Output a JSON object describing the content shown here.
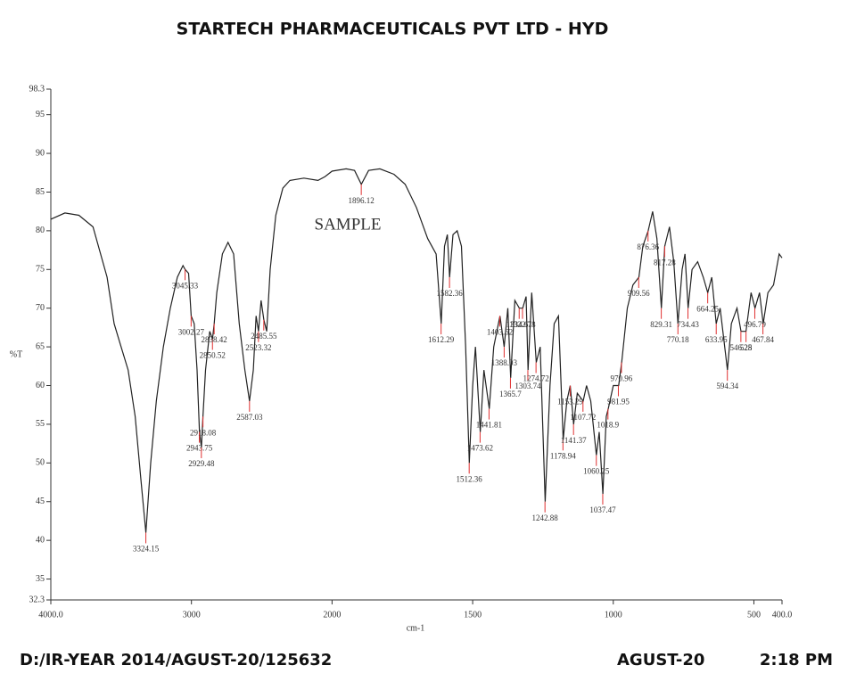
{
  "chart_data": {
    "type": "line",
    "title": "STARTECH PHARMACEUTICALS PVT LTD - HYD",
    "annotation": "SAMPLE",
    "x_label": "cm-1",
    "y_label": "%T",
    "footer_left": "D:/IR-YEAR 2014/AGUST-20/125632",
    "footer_date": "AGUST-20",
    "footer_time": "2:18 PM",
    "xlim": [
      4000,
      400
    ],
    "xscale": {
      "break": 2000,
      "factor": 2
    },
    "xticks": [
      {
        "value": 4000,
        "label": "4000.0"
      },
      3000,
      2000,
      1500,
      1000,
      500,
      {
        "value": 400,
        "label": "400.0"
      }
    ],
    "ylim": [
      32.3,
      98.3
    ],
    "yticks": [
      32.3,
      35,
      40,
      45,
      50,
      55,
      60,
      65,
      70,
      75,
      80,
      85,
      90,
      95,
      98.3
    ],
    "color": "#222222",
    "peak_color": "#e03030",
    "x": [
      4000,
      3900,
      3800,
      3700,
      3600,
      3550,
      3500,
      3450,
      3400,
      3360,
      3324,
      3290,
      3250,
      3200,
      3150,
      3100,
      3060,
      3045,
      3020,
      3002,
      2980,
      2960,
      2943,
      2929,
      2918,
      2900,
      2870,
      2850,
      2838,
      2820,
      2780,
      2740,
      2700,
      2660,
      2620,
      2587,
      2560,
      2540,
      2523,
      2505,
      2485,
      2465,
      2440,
      2400,
      2350,
      2300,
      2200,
      2100,
      2050,
      2000,
      1950,
      1920,
      1896,
      1870,
      1830,
      1780,
      1740,
      1700,
      1660,
      1630,
      1612,
      1600,
      1590,
      1582,
      1570,
      1555,
      1540,
      1525,
      1512,
      1500,
      1490,
      1473,
      1460,
      1441,
      1425,
      1403,
      1388,
      1375,
      1365,
      1350,
      1334,
      1322,
      1310,
      1303,
      1290,
      1274,
      1260,
      1242,
      1225,
      1210,
      1195,
      1178,
      1165,
      1153,
      1141,
      1128,
      1107,
      1095,
      1080,
      1060,
      1050,
      1037,
      1025,
      1018,
      1000,
      981,
      970,
      950,
      930,
      909,
      895,
      876,
      860,
      845,
      829,
      817,
      800,
      785,
      770,
      755,
      745,
      734,
      720,
      700,
      680,
      664,
      650,
      634,
      620,
      594,
      580,
      560,
      546,
      528,
      510,
      496,
      480,
      467,
      450,
      430,
      410,
      400
    ],
    "values": [
      81.5,
      82.3,
      82.0,
      80.5,
      74,
      68,
      65,
      62,
      56,
      48,
      41,
      50,
      58,
      65,
      70,
      74,
      75.5,
      75,
      74.5,
      69,
      68,
      62,
      54,
      52,
      56,
      62,
      67,
      66,
      68,
      72,
      77,
      78.5,
      77,
      68,
      62,
      58,
      62,
      69,
      67,
      71,
      68.5,
      67,
      75,
      82,
      85.5,
      86.5,
      86.8,
      86.5,
      87,
      87.7,
      88,
      87.8,
      86,
      87.8,
      88,
      87.3,
      86,
      83,
      79,
      77,
      68,
      78,
      79.5,
      74,
      79.5,
      80,
      78,
      65,
      50,
      60,
      65,
      54,
      62,
      57,
      65,
      69,
      65,
      70,
      61,
      71,
      70,
      70,
      71.5,
      62,
      72,
      63,
      65,
      45,
      60,
      68,
      69,
      53,
      58,
      60,
      55,
      59,
      58,
      60,
      58,
      51,
      54,
      46,
      56,
      57,
      60,
      60,
      63,
      70,
      73,
      74,
      78,
      80,
      82.5,
      79,
      70,
      78,
      80.5,
      76,
      68,
      75,
      77,
      70,
      75,
      76,
      74,
      72,
      74,
      68,
      70,
      62,
      68,
      70,
      67,
      67,
      72,
      70,
      72,
      68,
      72,
      73,
      77,
      76.5
    ],
    "peaks": [
      {
        "x": 3324.15,
        "y": 41
      },
      {
        "x": 3045.33,
        "y": 75
      },
      {
        "x": 3002.27,
        "y": 69
      },
      {
        "x": 2943.75,
        "y": 54
      },
      {
        "x": 2929.48,
        "y": 52
      },
      {
        "x": 2918.08,
        "y": 56
      },
      {
        "x": 2850.52,
        "y": 66
      },
      {
        "x": 2838.42,
        "y": 68
      },
      {
        "x": 2587.03,
        "y": 58
      },
      {
        "x": 2523.32,
        "y": 67
      },
      {
        "x": 2485.55,
        "y": 68.5
      },
      {
        "x": 1896.12,
        "y": 86
      },
      {
        "x": 1612.29,
        "y": 68
      },
      {
        "x": 1582.36,
        "y": 74
      },
      {
        "x": 1512.36,
        "y": 50
      },
      {
        "x": 1473.62,
        "y": 54
      },
      {
        "x": 1441.81,
        "y": 57
      },
      {
        "x": 1403.62,
        "y": 69
      },
      {
        "x": 1388.03,
        "y": 65
      },
      {
        "x": 1365.7,
        "y": 61
      },
      {
        "x": 1334.61,
        "y": 70
      },
      {
        "x": 1322.78,
        "y": 70
      },
      {
        "x": 1303.74,
        "y": 62
      },
      {
        "x": 1274.72,
        "y": 63
      },
      {
        "x": 1242.88,
        "y": 45
      },
      {
        "x": 1178.94,
        "y": 53
      },
      {
        "x": 1153.29,
        "y": 60
      },
      {
        "x": 1141.37,
        "y": 55
      },
      {
        "x": 1107.72,
        "y": 58
      },
      {
        "x": 1060.25,
        "y": 51
      },
      {
        "x": 1037.47,
        "y": 46
      },
      {
        "x": 1018.9,
        "y": 57
      },
      {
        "x": 981.95,
        "y": 60
      },
      {
        "x": 970.96,
        "y": 63
      },
      {
        "x": 909.56,
        "y": 74
      },
      {
        "x": 876.36,
        "y": 80
      },
      {
        "x": 829.31,
        "y": 70
      },
      {
        "x": 817.28,
        "y": 78
      },
      {
        "x": 770.18,
        "y": 68
      },
      {
        "x": 734.43,
        "y": 70
      },
      {
        "x": 664.25,
        "y": 72
      },
      {
        "x": 633.95,
        "y": 68
      },
      {
        "x": 594.34,
        "y": 62
      },
      {
        "x": 546.25,
        "y": 67
      },
      {
        "x": 528,
        "y": 67
      },
      {
        "x": 496.79,
        "y": 70
      },
      {
        "x": 467.84,
        "y": 68
      }
    ]
  }
}
